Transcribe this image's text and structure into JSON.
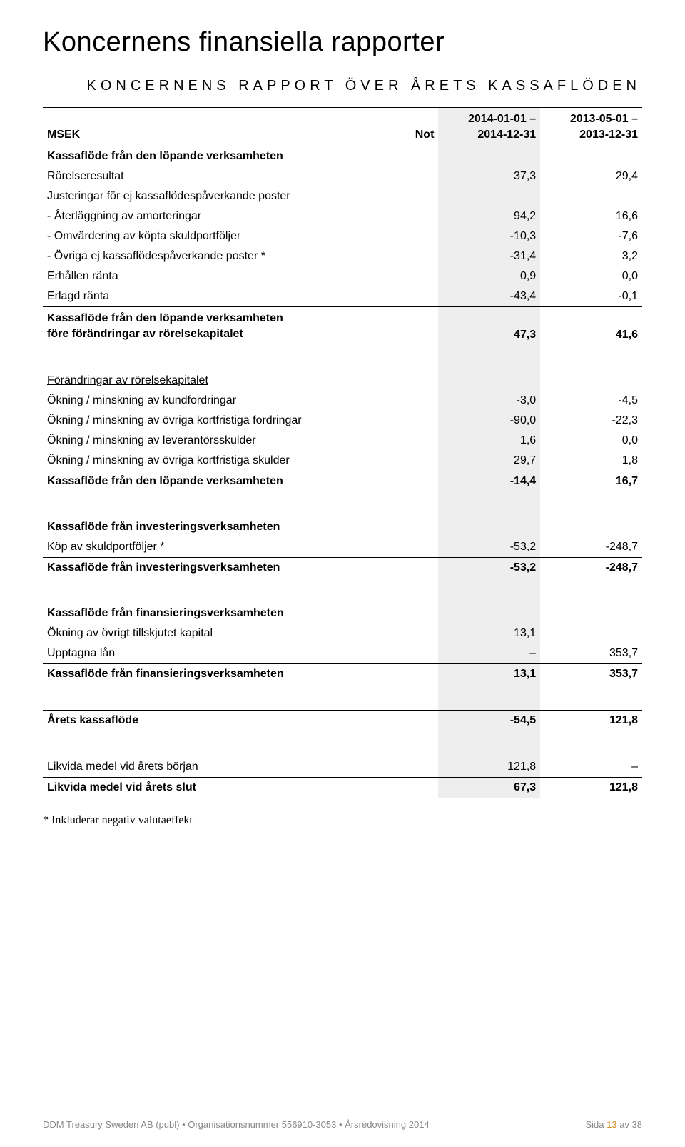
{
  "page_title": "Koncernens finansiella rapporter",
  "section_title": "KONCERNENS RAPPORT ÖVER ÅRETS KASSAFLÖDEN",
  "header": {
    "label": "MSEK",
    "not": "Not",
    "col1_top": "2014-01-01 –",
    "col1_bot": "2014-12-31",
    "col2_top": "2013-05-01 –",
    "col2_bot": "2013-12-31"
  },
  "rows": [
    {
      "label": "Kassaflöde från den löpande verksamheten",
      "type": "section-head"
    },
    {
      "label": "Rörelseresultat",
      "v1": "37,3",
      "v2": "29,4"
    },
    {
      "label": "Justeringar för ej kassaflödespåverkande poster"
    },
    {
      "label": "- Återläggning av amorteringar",
      "v1": "94,2",
      "v2": "16,6"
    },
    {
      "label": "- Omvärdering av köpta skuldportföljer",
      "v1": "-10,3",
      "v2": "-7,6"
    },
    {
      "label": "- Övriga ej kassaflödespåverkande poster *",
      "v1": "-31,4",
      "v2": "3,2"
    },
    {
      "label": "Erhållen ränta",
      "v1": "0,9",
      "v2": "0,0"
    },
    {
      "label": "Erlagd ränta",
      "v1": "-43,4",
      "v2": "-0,1",
      "underline": true
    },
    {
      "label": "Kassaflöde från den löpande verksamheten\nföre förändringar av rörelsekapitalet",
      "v1": "47,3",
      "v2": "41,6",
      "bold": true,
      "multiline": true
    },
    {
      "type": "spacer"
    },
    {
      "label": "Förändringar av rörelsekapitalet",
      "u": true
    },
    {
      "label": "Ökning / minskning av kundfordringar",
      "v1": "-3,0",
      "v2": "-4,5"
    },
    {
      "label": "Ökning / minskning av övriga kortfristiga fordringar",
      "v1": "-90,0",
      "v2": "-22,3"
    },
    {
      "label": "Ökning / minskning av leverantörsskulder",
      "v1": "1,6",
      "v2": "0,0"
    },
    {
      "label": "Ökning / minskning av övriga kortfristiga skulder",
      "v1": "29,7",
      "v2": "1,8",
      "underline": true
    },
    {
      "label": "Kassaflöde från den löpande verksamheten",
      "v1": "-14,4",
      "v2": "16,7",
      "bold": true
    },
    {
      "type": "spacer"
    },
    {
      "label": "Kassaflöde från investeringsverksamheten",
      "type": "section-head"
    },
    {
      "label": "Köp av skuldportföljer *",
      "v1": "-53,2",
      "v2": "-248,7",
      "underline": true
    },
    {
      "label": "Kassaflöde från investeringsverksamheten",
      "v1": "-53,2",
      "v2": "-248,7",
      "bold": true
    },
    {
      "type": "spacer"
    },
    {
      "label": "Kassaflöde från finansieringsverksamheten",
      "type": "section-head"
    },
    {
      "label": "Ökning av övrigt tillskjutet kapital",
      "v1": "13,1",
      "v2": ""
    },
    {
      "label": "Upptagna lån",
      "v1": "–",
      "v2": "353,7",
      "underline": true
    },
    {
      "label": "Kassaflöde från finansieringsverksamheten",
      "v1": "13,1",
      "v2": "353,7",
      "bold": true
    },
    {
      "type": "spacer"
    },
    {
      "label": "Årets kassaflöde",
      "v1": "-54,5",
      "v2": "121,8",
      "bold": true,
      "heavy_above": true,
      "heavy_below": true
    },
    {
      "type": "spacer"
    },
    {
      "label": "Likvida medel vid årets början",
      "v1": "121,8",
      "v2": "–",
      "underline": true
    },
    {
      "label": "Likvida medel vid årets slut",
      "v1": "67,3",
      "v2": "121,8",
      "bold": true,
      "heavy_below": true
    }
  ],
  "footnote": "* Inkluderar negativ valutaeffekt",
  "footer": {
    "left": "DDM Treasury Sweden AB (publ) • Organisationsnummer 556910-3053 • Årsredovisning 2014",
    "right_prefix": "Sida ",
    "page": "13",
    "right_suffix": " av 38"
  }
}
